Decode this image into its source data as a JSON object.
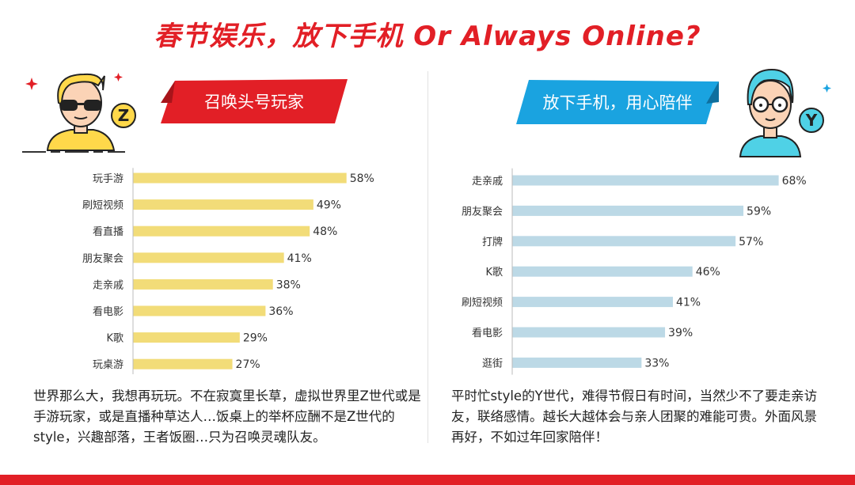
{
  "title": "春节娱乐，放下手机 Or Always Online?",
  "left": {
    "badge": "Z",
    "banner": "召唤头号玩家",
    "description": "世界那么大，我想再玩玩。不在寂寞里长草，虚拟世界里Z世代或是手游玩家，或是直播种草达人…饭桌上的举杯应酬不是Z世代的style，兴趣部落，王者饭圈…只为召唤灵魂队友。"
  },
  "right": {
    "badge": "Y",
    "banner": "放下手机，用心陪伴",
    "description": "平时忙style的Y世代，难得节假日有时间，当然少不了要走亲访友，联络感情。越长大越体会与亲人团聚的难能可贵。外面风景再好，不如过年回家陪伴！"
  },
  "colors": {
    "title": "#e21f26",
    "left_bar": "#f2dc78",
    "right_bar": "#bcd9e6",
    "left_banner": "#e21f26",
    "right_banner": "#1aa3e0",
    "bottom_bar": "#e21f26"
  },
  "icons": [
    "z-generation-avatar-icon",
    "y-generation-avatar-icon",
    "sparkle-icon"
  ],
  "chart_data": [
    {
      "type": "bar",
      "orientation": "horizontal",
      "categories": [
        "玩手游",
        "刷短视频",
        "看直播",
        "朋友聚会",
        "走亲戚",
        "看电影",
        "K歌",
        "玩桌游"
      ],
      "values": [
        58,
        49,
        48,
        41,
        38,
        36,
        29,
        27
      ],
      "value_labels": [
        "58%",
        "49%",
        "48%",
        "41%",
        "38%",
        "36%",
        "29%",
        "27%"
      ],
      "xlim": [
        0,
        80
      ],
      "grid": false,
      "legend": "none",
      "color": "#f2dc78"
    },
    {
      "type": "bar",
      "orientation": "horizontal",
      "categories": [
        "走亲戚",
        "朋友聚会",
        "打牌",
        "K歌",
        "刷短视频",
        "看电影",
        "逛街"
      ],
      "values": [
        68,
        59,
        57,
        46,
        41,
        39,
        33
      ],
      "value_labels": [
        "68%",
        "59%",
        "57%",
        "46%",
        "41%",
        "39%",
        "33%"
      ],
      "xlim": [
        0,
        80
      ],
      "grid": false,
      "legend": "none",
      "color": "#bcd9e6"
    }
  ]
}
